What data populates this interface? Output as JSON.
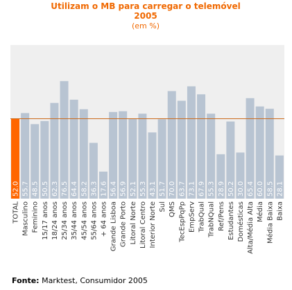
{
  "chart_data": {
    "type": "bar",
    "title": "Utilizam o MB para carregar o telemóvel",
    "subtitle_year": "2005",
    "subtitle_unit": "(em %)",
    "ylim": [
      0,
      100
    ],
    "categories": [
      "TOTAL",
      "Masculino",
      "Feminino",
      "15/17 anos",
      "18/24 anos",
      "25/34 anos",
      "35/44 anos",
      "45/54 anos",
      "55/64 anos",
      "+ 64 anos",
      "Grande Lisboa",
      "Grande Porto",
      "Litoral Norte",
      "Litoral Centro",
      "Interior Norte",
      "Sul",
      "QMS",
      "TecEspPqPp",
      "EmpServ",
      "TrabQual",
      "TrabNQual",
      "Ref/Pens",
      "Estudantes",
      "Domésticas",
      "Alta/Média Alta",
      "Média",
      "Média Baixa",
      "Baixa"
    ],
    "values": [
      52.0,
      55.7,
      48.5,
      50.5,
      62.3,
      76.5,
      64.4,
      58.2,
      36.3,
      17.6,
      56.4,
      56.9,
      52.1,
      55.3,
      43.1,
      51.7,
      70.0,
      63.7,
      73.1,
      67.9,
      55.3,
      28.9,
      50.2,
      30.0,
      65.4,
      60.0,
      58.5,
      28.1
    ],
    "value_labels": [
      "52.0",
      "55.7",
      "48.5",
      "50.5",
      "62.3",
      "76.5",
      "64.4",
      "58.2",
      "36.3",
      "17.6",
      "56.4",
      "56.9",
      "52.1",
      "55.3",
      "43.1",
      "51.7",
      "70.0",
      "63.7",
      "73.1",
      "67.9",
      "55.3",
      "28.9",
      "50.2",
      "30.0",
      "65.4",
      "60.0",
      "58.5",
      "28.1"
    ],
    "reference_line_value": 52.0,
    "grid": false,
    "colors": {
      "title": "#f06800",
      "highlight_bar": "#ff6600",
      "bar": "#b8c4d2",
      "plot_background": "#efefef",
      "reference_line": "#cc6a1a",
      "label_text": "#333333"
    }
  },
  "footer": {
    "source_label": "Fonte:",
    "source_text": "Marktest, Consumidor 2005"
  }
}
